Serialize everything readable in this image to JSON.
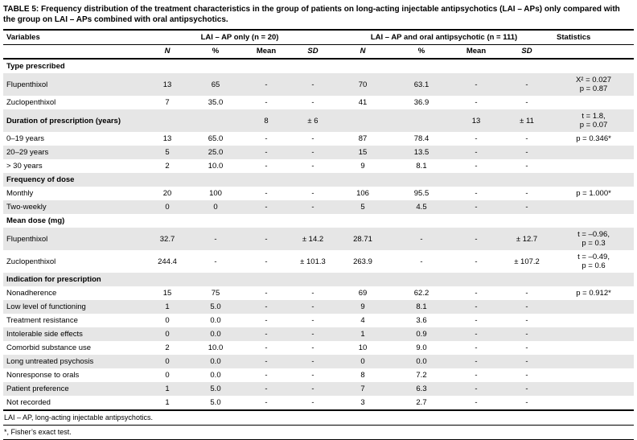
{
  "title": {
    "label": "TABLE 5:",
    "text": "Frequency distribution of the treatment characteristics in the group of patients on long-acting injectable antipsychotics (LAI – APs) only compared with the group on LAI – APs combined with oral antipsychotics."
  },
  "colors": {
    "row_stripe": "#e6e6e6",
    "rule": "#000000"
  },
  "table": {
    "header": {
      "variables": "Variables",
      "group1": "LAI – AP only (n = 20)",
      "group2": "LAI – AP and oral antipsychotic (n = 111)",
      "statistics": "Statistics",
      "subcols": [
        "N",
        "%",
        "Mean",
        "SD"
      ]
    },
    "rows": [
      {
        "label": "Type prescribed",
        "bold": true,
        "c": [
          "",
          "",
          "",
          "",
          "",
          "",
          "",
          ""
        ],
        "stat": []
      },
      {
        "label": "Flupenthixol",
        "bold": false,
        "c": [
          "13",
          "65",
          "-",
          "-",
          "70",
          "63.1",
          "-",
          "-"
        ],
        "stat": [
          "X² = 0.027",
          "p = 0.87"
        ]
      },
      {
        "label": "Zuclopenthixol",
        "bold": false,
        "c": [
          "7",
          "35.0",
          "-",
          "-",
          "41",
          "36.9",
          "-",
          "-"
        ],
        "stat": []
      },
      {
        "label": "Duration of prescription (years)",
        "bold": true,
        "c": [
          "",
          "",
          "8",
          "± 6",
          "",
          "",
          "13",
          "± 11"
        ],
        "stat": [
          "t = 1.8,",
          "p = 0.07"
        ]
      },
      {
        "label": "0–19 years",
        "bold": false,
        "c": [
          "13",
          "65.0",
          "-",
          "-",
          "87",
          "78.4",
          "-",
          "-"
        ],
        "stat": [
          "p = 0.346*"
        ]
      },
      {
        "label": "20–29 years",
        "bold": false,
        "c": [
          "5",
          "25.0",
          "-",
          "-",
          "15",
          "13.5",
          "-",
          "-"
        ],
        "stat": []
      },
      {
        "label": "> 30 years",
        "bold": false,
        "c": [
          "2",
          "10.0",
          "-",
          "-",
          "9",
          "8.1",
          "-",
          "-"
        ],
        "stat": []
      },
      {
        "label": "Frequency of dose",
        "bold": true,
        "c": [
          "",
          "",
          "",
          "",
          "",
          "",
          "",
          ""
        ],
        "stat": []
      },
      {
        "label": "Monthly",
        "bold": false,
        "c": [
          "20",
          "100",
          "-",
          "-",
          "106",
          "95.5",
          "-",
          "-"
        ],
        "stat": [
          "p = 1.000*"
        ]
      },
      {
        "label": "Two-weekly",
        "bold": false,
        "c": [
          "0",
          "0",
          "-",
          "-",
          "5",
          "4.5",
          "-",
          "-"
        ],
        "stat": []
      },
      {
        "label": "Mean dose (mg)",
        "bold": true,
        "c": [
          "",
          "",
          "",
          "",
          "",
          "",
          "",
          ""
        ],
        "stat": []
      },
      {
        "label": "Flupenthixol",
        "bold": false,
        "c": [
          "32.7",
          "-",
          "-",
          "± 14.2",
          "28.71",
          "-",
          "-",
          "± 12.7"
        ],
        "stat": [
          "t = –0.96,",
          "p = 0.3"
        ]
      },
      {
        "label": "Zuclopenthixol",
        "bold": false,
        "c": [
          "244.4",
          "-",
          "-",
          "± 101.3",
          "263.9",
          "-",
          "-",
          "± 107.2"
        ],
        "stat": [
          "t = –0.49,",
          "p = 0.6"
        ]
      },
      {
        "label": "Indication for prescription",
        "bold": true,
        "c": [
          "",
          "",
          "",
          "",
          "",
          "",
          "",
          ""
        ],
        "stat": []
      },
      {
        "label": "Nonadherence",
        "bold": false,
        "c": [
          "15",
          "75",
          "-",
          "-",
          "69",
          "62.2",
          "-",
          "-"
        ],
        "stat": [
          "p = 0.912*"
        ]
      },
      {
        "label": "Low level of functioning",
        "bold": false,
        "c": [
          "1",
          "5.0",
          "-",
          "-",
          "9",
          "8.1",
          "-",
          "-"
        ],
        "stat": []
      },
      {
        "label": "Treatment resistance",
        "bold": false,
        "c": [
          "0",
          "0.0",
          "-",
          "-",
          "4",
          "3.6",
          "-",
          "-"
        ],
        "stat": []
      },
      {
        "label": "Intolerable side effects",
        "bold": false,
        "c": [
          "0",
          "0.0",
          "-",
          "-",
          "1",
          "0.9",
          "-",
          "-"
        ],
        "stat": []
      },
      {
        "label": "Comorbid substance use",
        "bold": false,
        "c": [
          "2",
          "10.0",
          "-",
          "-",
          "10",
          "9.0",
          "-",
          "-"
        ],
        "stat": []
      },
      {
        "label": "Long untreated psychosis",
        "bold": false,
        "c": [
          "0",
          "0.0",
          "-",
          "-",
          "0",
          "0.0",
          "-",
          "-"
        ],
        "stat": []
      },
      {
        "label": "Nonresponse to orals",
        "bold": false,
        "c": [
          "0",
          "0.0",
          "-",
          "-",
          "8",
          "7.2",
          "-",
          "-"
        ],
        "stat": []
      },
      {
        "label": "Patient preference",
        "bold": false,
        "c": [
          "1",
          "5.0",
          "-",
          "-",
          "7",
          "6.3",
          "-",
          "-"
        ],
        "stat": []
      },
      {
        "label": "Not recorded",
        "bold": false,
        "c": [
          "1",
          "5.0",
          "-",
          "-",
          "3",
          "2.7",
          "-",
          "-"
        ],
        "stat": []
      }
    ]
  },
  "footnotes": [
    "LAI – AP, long-acting injectable antipsychotics.",
    "*, Fisher’s exact test."
  ]
}
